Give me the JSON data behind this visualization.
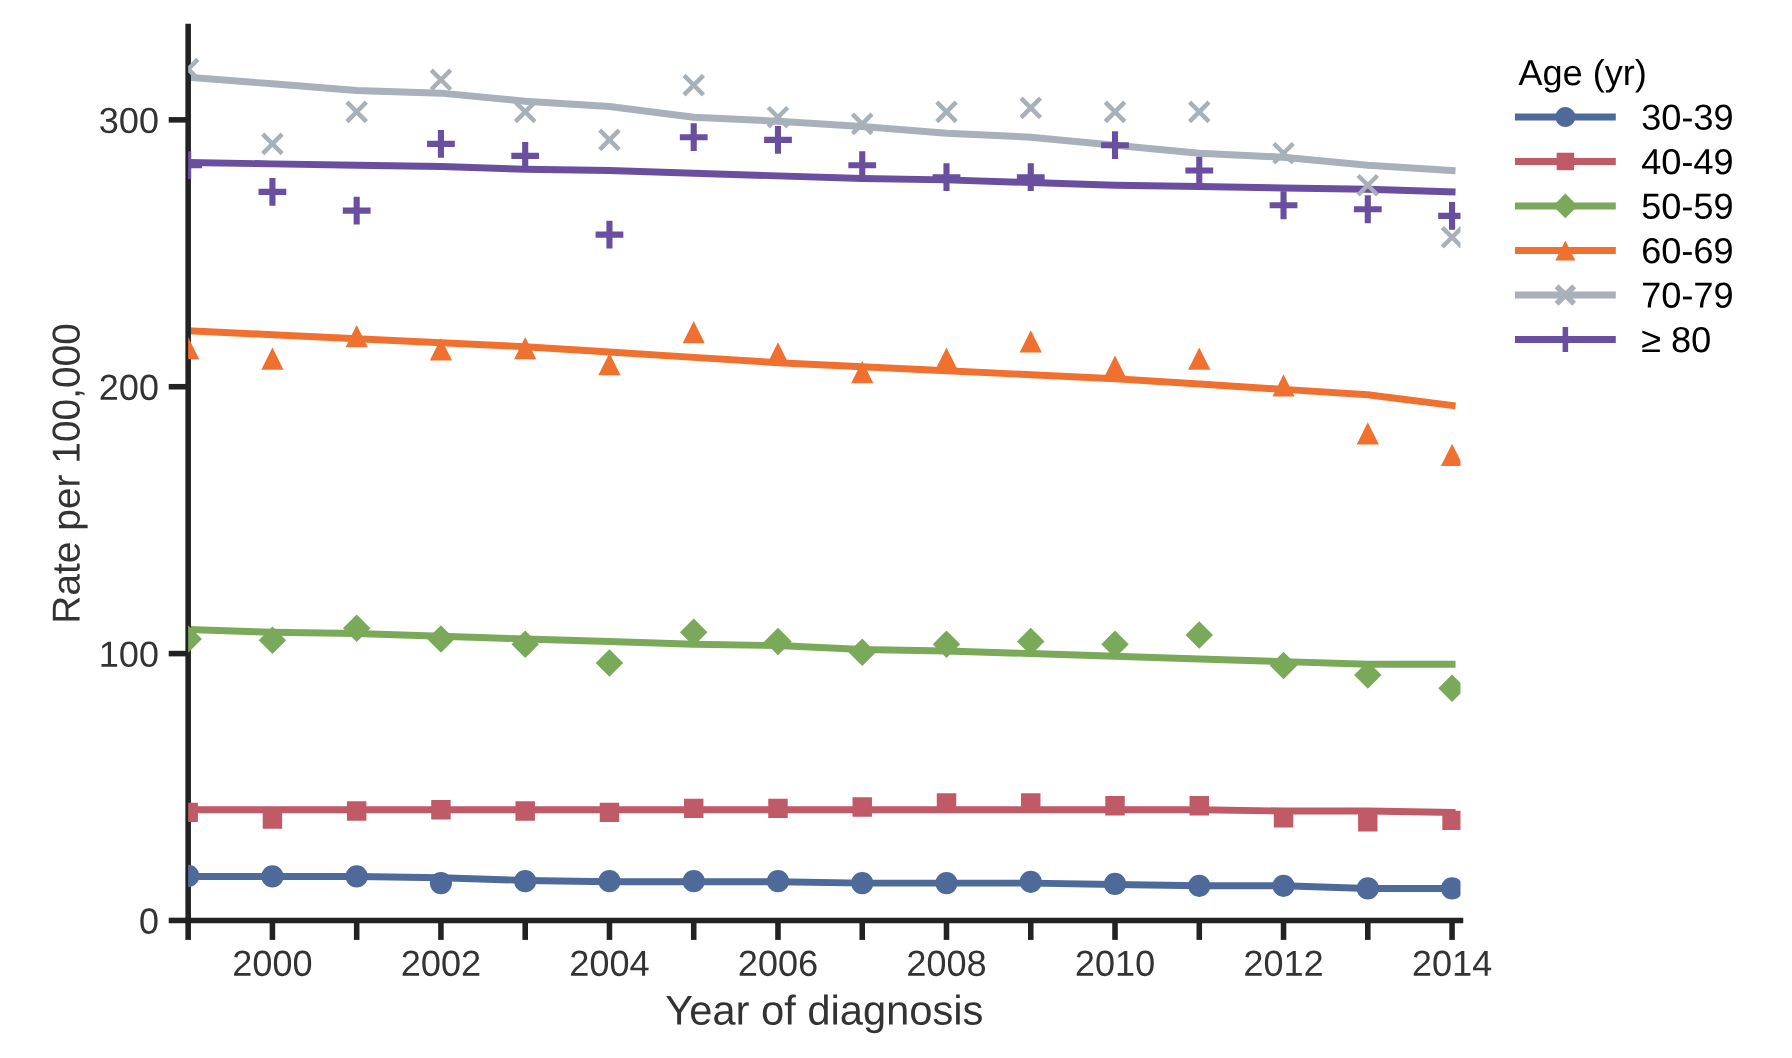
{
  "chart_data": {
    "type": "scatter",
    "xlabel": "Year of diagnosis",
    "ylabel": "Rate per 100,000",
    "legend_title": "Age (yr)",
    "legend": "right",
    "grid": false,
    "x": [
      1999,
      2000,
      2001,
      2002,
      2003,
      2004,
      2005,
      2006,
      2007,
      2008,
      2009,
      2010,
      2011,
      2012,
      2013,
      2014
    ],
    "xlim": [
      1999,
      2014.1
    ],
    "xticks": [
      {
        "value": 1999,
        "label": null
      },
      2000,
      {
        "value": 2001,
        "label": null
      },
      2002,
      {
        "value": 2003,
        "label": null
      },
      2004,
      {
        "value": 2005,
        "label": null
      },
      2006,
      {
        "value": 2007,
        "label": null
      },
      2008,
      {
        "value": 2009,
        "label": null
      },
      2010,
      {
        "value": 2011,
        "label": null
      },
      2012,
      {
        "value": 2013,
        "label": null
      },
      2014
    ],
    "ylim": [
      0,
      335
    ],
    "yticks": [
      0,
      100,
      200,
      300
    ],
    "series": [
      {
        "name": "30-39",
        "marker": "circle",
        "color": "#4e6a9a",
        "values": [
          16.7,
          16.5,
          16.5,
          14,
          14.7,
          14.7,
          14.7,
          14.7,
          14,
          14,
          14.5,
          13.7,
          13,
          13,
          12,
          12
        ]
      },
      {
        "type": "line",
        "color": "#4e6a9a",
        "values": [
          16.5,
          16.5,
          16.5,
          16,
          15,
          14.5,
          14.5,
          14.5,
          14,
          14,
          14,
          13.5,
          13,
          13,
          12,
          12
        ]
      },
      {
        "name": "40-49",
        "marker": "square",
        "color": "#c05a66",
        "values": [
          40.5,
          38,
          41,
          41.5,
          41,
          40.5,
          42,
          42,
          42.5,
          44,
          44,
          43,
          43,
          38.5,
          37,
          37.5
        ]
      },
      {
        "type": "line",
        "color": "#c05a66",
        "values": [
          41.5,
          41.5,
          41.5,
          41.5,
          41.5,
          41.5,
          41.5,
          41.5,
          41.5,
          41.5,
          41.5,
          41.5,
          41.5,
          41,
          41,
          40.5
        ]
      },
      {
        "name": "50-59",
        "marker": "diamond",
        "color": "#7aa95a",
        "values": [
          105.5,
          105,
          109.5,
          105.5,
          103.5,
          96.5,
          108,
          104.5,
          100.5,
          103.5,
          104.5,
          103.5,
          107,
          95.5,
          92,
          87
        ]
      },
      {
        "type": "line",
        "color": "#7aa95a",
        "values": [
          109,
          108,
          107.5,
          106.5,
          105.5,
          104.5,
          103.5,
          103,
          101.5,
          101,
          100,
          99,
          98,
          97,
          96,
          96
        ]
      },
      {
        "name": "60-69",
        "marker": "triangle",
        "color": "#f07030",
        "values": [
          214.5,
          210.5,
          219,
          214,
          214.5,
          208.5,
          220.5,
          212.5,
          205.5,
          210.5,
          217,
          207.5,
          210.5,
          200.5,
          182.5,
          174.5
        ]
      },
      {
        "type": "line",
        "color": "#f07030",
        "values": [
          221,
          219.5,
          218,
          216.5,
          215,
          213,
          211,
          209,
          207.5,
          206,
          204.5,
          203,
          201,
          199,
          197,
          193
        ]
      },
      {
        "name": "70-79",
        "marker": "cross",
        "color": "#a8b0ba",
        "values": [
          319,
          291,
          303,
          315,
          303,
          292.5,
          313,
          301,
          298.5,
          303,
          304.5,
          303,
          303,
          287.5,
          275.5,
          256
        ]
      },
      {
        "type": "line",
        "color": "#a8b0ba",
        "values": [
          316,
          313.5,
          311,
          310,
          307,
          305,
          301,
          299.5,
          297.5,
          295,
          293.5,
          290.5,
          287.5,
          286,
          283,
          281
        ]
      },
      {
        "name": "≥ 80",
        "marker": "cross",
        "color": "#6a4fa0",
        "values": [
          283,
          273,
          266,
          291,
          286.5,
          257,
          293.5,
          292.5,
          283,
          278.5,
          278.5,
          290.5,
          281,
          268,
          266.5,
          264
        ]
      },
      {
        "type": "line",
        "color": "#6a4fa0",
        "values": [
          284,
          283.5,
          283,
          282.5,
          281.5,
          281,
          280,
          279,
          278,
          277.5,
          276.5,
          275.5,
          275,
          274.5,
          274,
          273
        ]
      }
    ]
  }
}
